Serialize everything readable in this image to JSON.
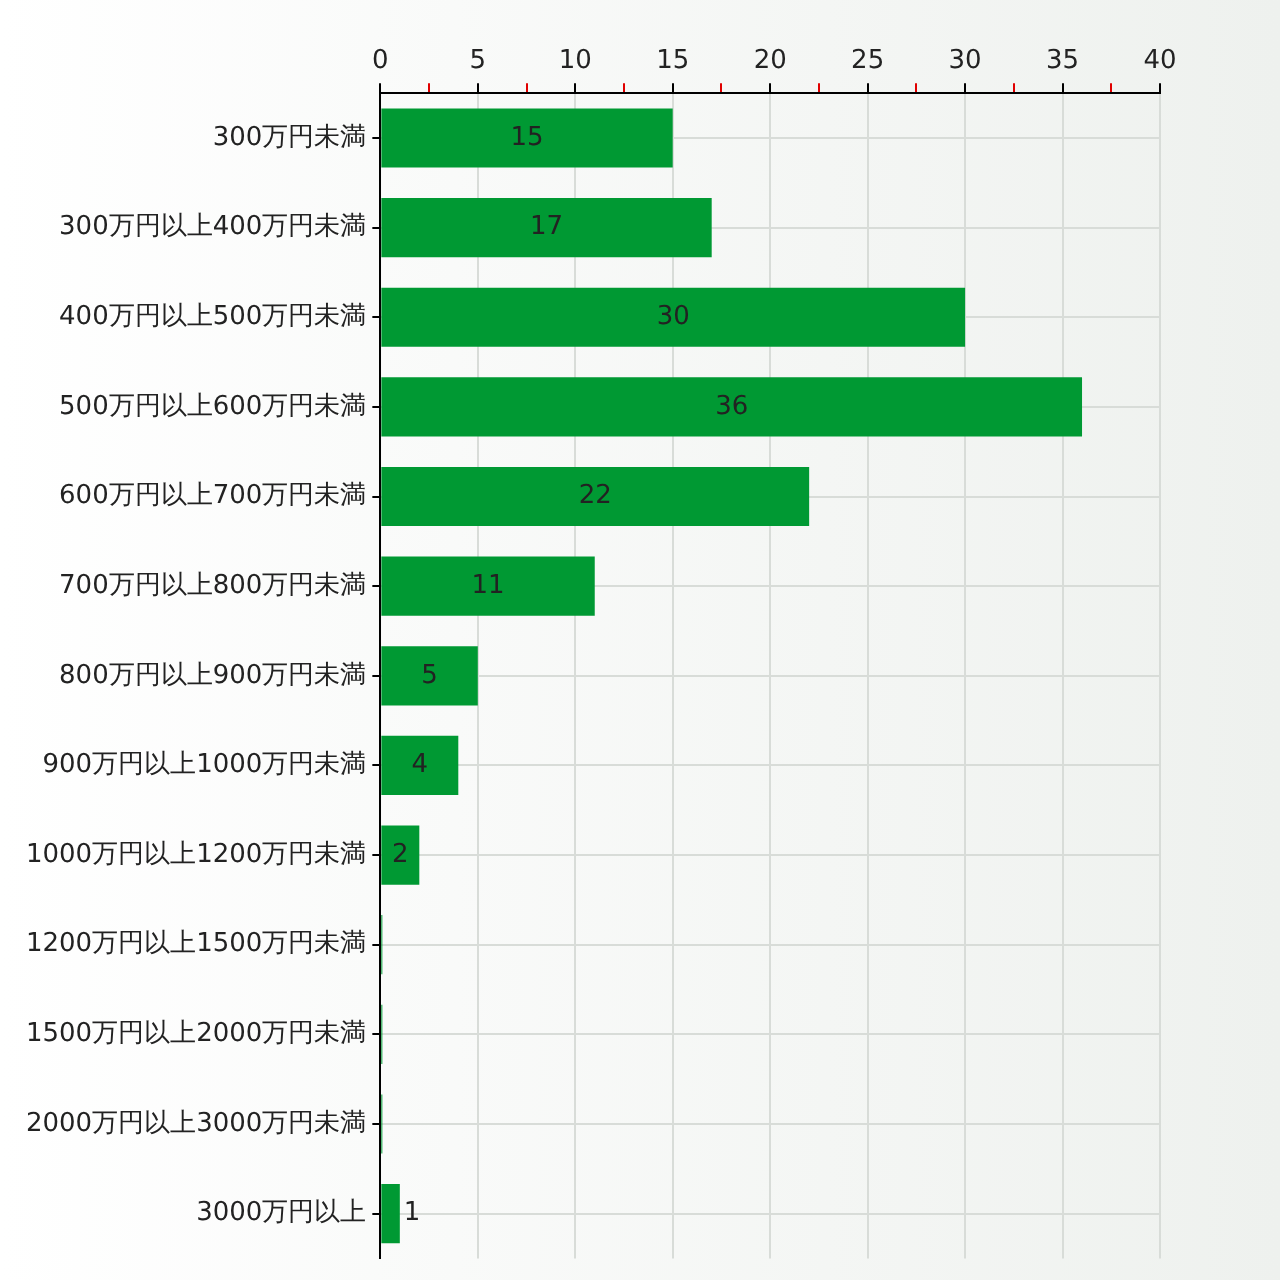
{
  "chart_data": {
    "type": "bar",
    "orientation": "horizontal",
    "categories": [
      "300万円未満",
      "300万円以上400万円未満",
      "400万円以上500万円未満",
      "500万円以上600万円未満",
      "600万円以上700万円未満",
      "700万円以上800万円未満",
      "800万円以上900万円未満",
      "900万円以上1000万円未満",
      "1000万円以上1200万円未満",
      "1200万円以上1500万円未満",
      "1500万円以上2000万円未満",
      "2000万円以上3000万円未満",
      "3000万円以上"
    ],
    "values": [
      15,
      17,
      30,
      36,
      22,
      11,
      5,
      4,
      2,
      0,
      0,
      0,
      1
    ],
    "value_labels": [
      "15",
      "17",
      "30",
      "36",
      "22",
      "11",
      "5",
      "4",
      "2",
      null,
      null,
      null,
      "1"
    ],
    "color": "#009933",
    "xlim": [
      0,
      40
    ],
    "xticks": [
      0,
      {
        "value": 2.5,
        "label": null
      },
      5,
      {
        "value": 7.5,
        "label": null
      },
      10,
      {
        "value": 12.5,
        "label": null
      },
      15,
      {
        "value": 17.5,
        "label": null
      },
      20,
      {
        "value": 22.5,
        "label": null
      },
      25,
      {
        "value": 27.5,
        "label": null
      },
      30,
      {
        "value": 32.5,
        "label": null
      },
      35,
      {
        "value": 37.5,
        "label": null
      },
      40
    ],
    "grid": true,
    "legend": false
  }
}
